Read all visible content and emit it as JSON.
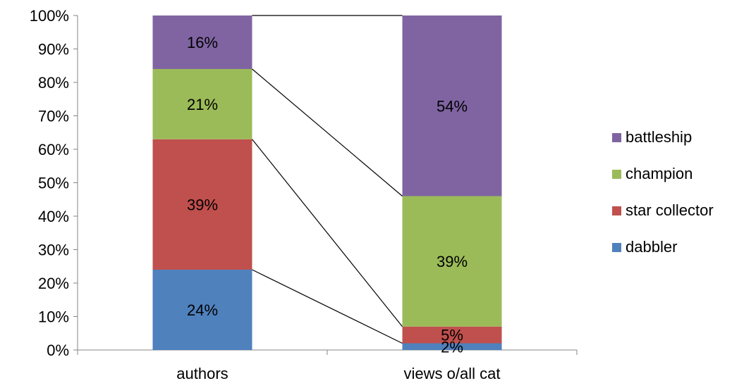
{
  "chart_data": {
    "type": "bar",
    "stacked": true,
    "percent_stacked": true,
    "categories": [
      "authors",
      "views o/all cat"
    ],
    "series": [
      {
        "name": "dabbler",
        "values": [
          24,
          2
        ],
        "labels": [
          "24%",
          "2%"
        ],
        "color": "#4F81BD"
      },
      {
        "name": "star collector",
        "values": [
          39,
          5
        ],
        "labels": [
          "39%",
          "5%"
        ],
        "color": "#C0504D"
      },
      {
        "name": "champion",
        "values": [
          21,
          39
        ],
        "labels": [
          "21%",
          "39%"
        ],
        "color": "#9BBB59"
      },
      {
        "name": "battleship",
        "values": [
          16,
          54
        ],
        "labels": [
          "16%",
          "54%"
        ],
        "color": "#8064A2"
      }
    ],
    "y_ticks": [
      "0%",
      "10%",
      "20%",
      "30%",
      "40%",
      "50%",
      "60%",
      "70%",
      "80%",
      "90%",
      "100%"
    ],
    "ylim": [
      0,
      100
    ],
    "series_lines": true,
    "legend_position": "right",
    "legend_order": [
      "battleship",
      "champion",
      "star collector",
      "dabbler"
    ],
    "grid": false
  }
}
